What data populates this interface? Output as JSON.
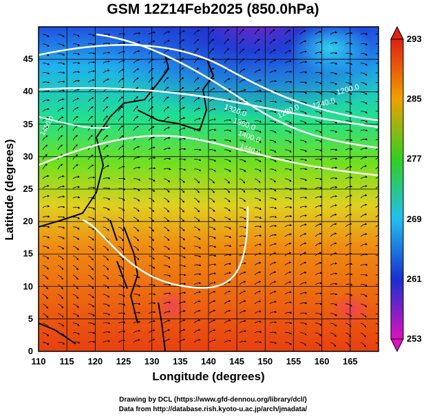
{
  "title": "GSM 12Z14Feb2025 (850.0hPa)",
  "axes": {
    "xlabel": "Longitude (degrees)",
    "ylabel": "Latitude  (degrees)",
    "x_ticks": [
      "110",
      "115",
      "120",
      "125",
      "130",
      "135",
      "140",
      "145",
      "150",
      "155",
      "160",
      "165"
    ],
    "y_ticks": [
      "0",
      "5",
      "10",
      "15",
      "20",
      "25",
      "30",
      "35",
      "40",
      "45"
    ]
  },
  "colorbar": {
    "labels": [
      "293",
      "285",
      "277",
      "269",
      "261",
      "253"
    ]
  },
  "contour_labels": [
    "1200.0",
    "1240.0",
    "1280.0",
    "1320.0",
    "1360.0",
    "1400.0",
    "1440.0",
    "1480.0"
  ],
  "credits": {
    "line1": "Drawing by DCL (https://www.gfd-dennou.org/library/dcl/)",
    "line2": "Data from http://database.rish.kyoto-u.ac.jp/arch/jmadata/"
  },
  "chart_data": {
    "type": "heatmap",
    "title": "GSM 12Z14Feb2025 (850.0hPa)",
    "xlabel": "Longitude (degrees)",
    "ylabel": "Latitude  (degrees)",
    "xlim": [
      110,
      170
    ],
    "ylim": [
      0,
      50
    ],
    "x_ticks": [
      110,
      115,
      120,
      125,
      130,
      135,
      140,
      145,
      150,
      155,
      160,
      165
    ],
    "y_ticks": [
      0,
      5,
      10,
      15,
      20,
      25,
      30,
      35,
      40,
      45
    ],
    "colorbar_range": [
      253,
      293
    ],
    "colorbar_ticks": [
      253,
      261,
      269,
      277,
      285,
      293
    ],
    "contour_levels_labeled": [
      1200,
      1240,
      1280,
      1320,
      1360,
      1400,
      1440,
      1480
    ],
    "grid": true,
    "colors": {
      "min": "#e010c0",
      "261": "#1830d0",
      "269": "#20c0f0",
      "277": "#30d020",
      "285": "#f0a000",
      "max": "#e02010"
    }
  }
}
